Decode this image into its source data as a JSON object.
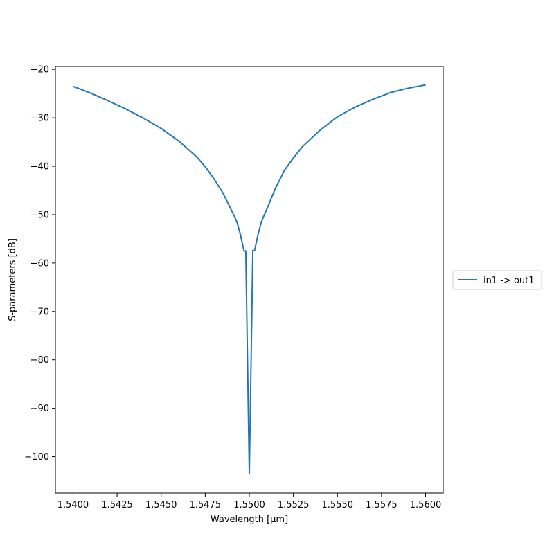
{
  "chart_data": {
    "type": "line",
    "title": "",
    "xlabel": "Wavelength [μm]",
    "ylabel": "S-parameters [dB]",
    "xlim": [
      1.539,
      1.561
    ],
    "ylim": [
      -107.5,
      -19.4
    ],
    "x_ticks": [
      1.54,
      1.5425,
      1.545,
      1.5475,
      1.55,
      1.5525,
      1.555,
      1.5575,
      1.56
    ],
    "x_tick_labels": [
      "1.5400",
      "1.5425",
      "1.5450",
      "1.5475",
      "1.5500",
      "1.5525",
      "1.5550",
      "1.5575",
      "1.5600"
    ],
    "y_ticks": [
      -20,
      -30,
      -40,
      -50,
      -60,
      -70,
      -80,
      -90,
      -100
    ],
    "y_tick_labels": [
      "−20",
      "−30",
      "−40",
      "−50",
      "−60",
      "−70",
      "−80",
      "−90",
      "−100"
    ],
    "grid": false,
    "legend_position": "outside-right",
    "colors": {
      "series": "#1f77b4"
    },
    "series": [
      {
        "name": "in1 -> out1",
        "x": [
          1.54,
          1.541,
          1.542,
          1.543,
          1.544,
          1.545,
          1.546,
          1.547,
          1.5475,
          1.548,
          1.5485,
          1.549,
          1.5493,
          1.5495,
          1.5497,
          1.5498,
          1.55,
          1.5502,
          1.5503,
          1.5505,
          1.5507,
          1.551,
          1.5515,
          1.552,
          1.5525,
          1.553,
          1.554,
          1.555,
          1.556,
          1.557,
          1.558,
          1.559,
          1.56
        ],
        "values": [
          -23.5,
          -24.9,
          -26.5,
          -28.2,
          -30.1,
          -32.2,
          -34.8,
          -38.0,
          -40.1,
          -42.6,
          -45.5,
          -49.2,
          -51.5,
          -54.2,
          -57.5,
          -57.5,
          -103.5,
          -57.4,
          -57.4,
          -54.0,
          -51.3,
          -48.8,
          -44.4,
          -40.8,
          -38.3,
          -36.0,
          -32.6,
          -29.8,
          -27.8,
          -26.2,
          -24.8,
          -23.9,
          -23.2
        ]
      }
    ]
  }
}
